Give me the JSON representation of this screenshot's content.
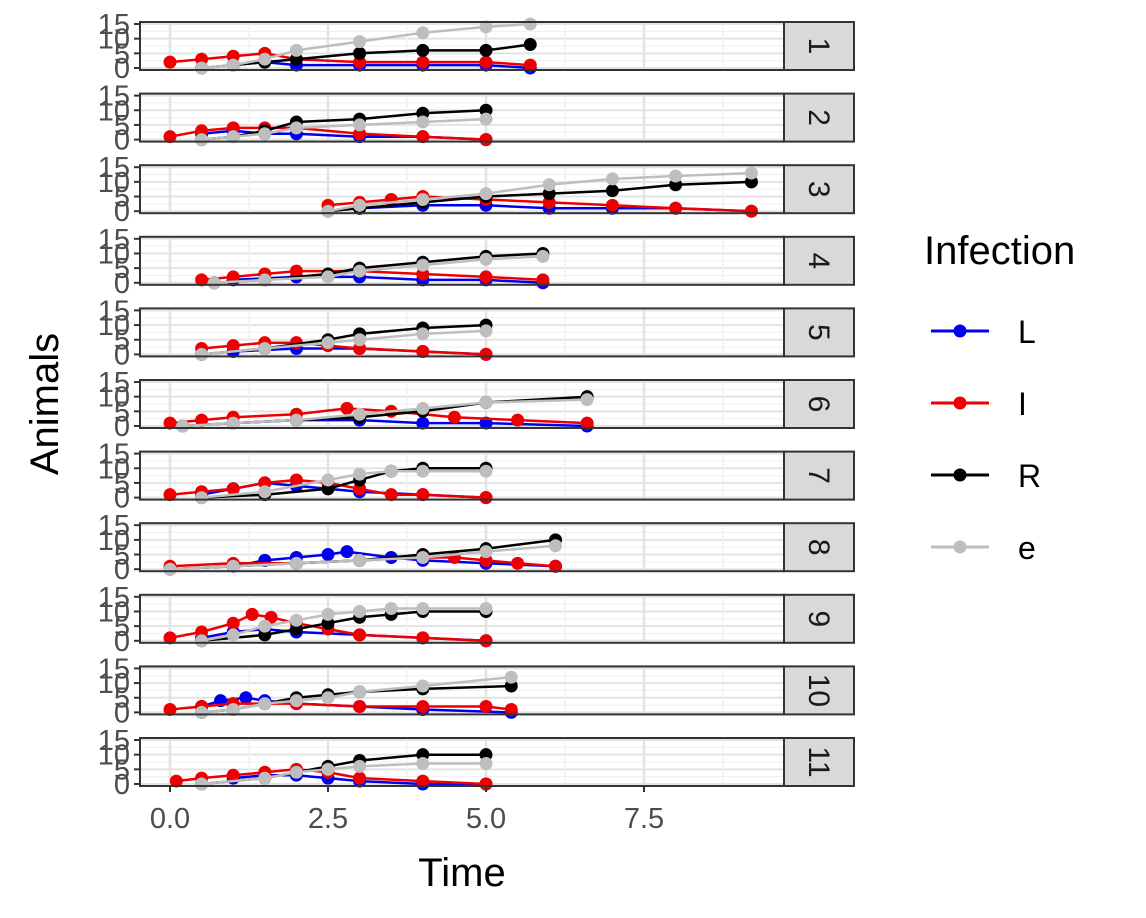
{
  "chart_data": {
    "type": "line",
    "xlabel": "Time",
    "ylabel": "Animals",
    "xlim": [
      0,
      9.6
    ],
    "ylim": [
      0,
      15
    ],
    "x_ticks": [
      "0.0",
      "2.5",
      "5.0",
      "7.5"
    ],
    "y_ticks": [
      "0",
      "5",
      "10",
      "15"
    ],
    "grid": true,
    "legend": {
      "title": "Infection",
      "position": "right",
      "entries": [
        {
          "label": "L",
          "color": "#0000ee"
        },
        {
          "label": "I",
          "color": "#ee0000"
        },
        {
          "label": "R",
          "color": "#000000"
        },
        {
          "label": "e",
          "color": "#bebebe"
        }
      ]
    },
    "panels": [
      {
        "label": "1",
        "series": [
          {
            "name": "L",
            "x": [
              1.0,
              1.5,
              2.0,
              3.0,
              4.0,
              5.0,
              5.7
            ],
            "y": [
              1,
              2,
              1,
              1,
              1,
              1,
              0
            ]
          },
          {
            "name": "I",
            "x": [
              0.0,
              0.5,
              1.0,
              1.5,
              2.0,
              3.0,
              4.0,
              5.0,
              5.7
            ],
            "y": [
              2,
              3,
              4,
              5,
              3,
              2,
              2,
              2,
              1
            ]
          },
          {
            "name": "R",
            "x": [
              0.5,
              1.0,
              1.5,
              2.0,
              3.0,
              4.0,
              5.0,
              5.7
            ],
            "y": [
              0,
              1,
              2,
              3,
              5,
              6,
              6,
              8
            ]
          },
          {
            "name": "e",
            "x": [
              0.5,
              1.0,
              1.5,
              2.0,
              3.0,
              4.0,
              5.0,
              5.7
            ],
            "y": [
              0,
              1,
              3,
              6,
              9,
              12,
              14,
              15
            ]
          }
        ]
      },
      {
        "label": "2",
        "series": [
          {
            "name": "L",
            "x": [
              0.5,
              1.0,
              1.5,
              2.0,
              3.0,
              4.0,
              5.0
            ],
            "y": [
              2,
              3,
              2,
              2,
              1,
              1,
              0
            ]
          },
          {
            "name": "I",
            "x": [
              0.0,
              0.5,
              1.0,
              1.5,
              2.0,
              3.0,
              4.0,
              5.0
            ],
            "y": [
              1,
              3,
              4,
              4,
              4,
              2,
              1,
              0
            ]
          },
          {
            "name": "R",
            "x": [
              0.5,
              1.0,
              1.5,
              2.0,
              3.0,
              4.0,
              5.0
            ],
            "y": [
              0,
              1,
              3,
              6,
              7,
              9,
              10
            ]
          },
          {
            "name": "e",
            "x": [
              0.5,
              1.0,
              1.5,
              2.0,
              3.0,
              4.0,
              5.0
            ],
            "y": [
              0,
              1,
              2,
              4,
              5,
              6,
              7
            ]
          }
        ]
      },
      {
        "label": "3",
        "series": [
          {
            "name": "L",
            "x": [
              3.0,
              4.0,
              5.0,
              6.0,
              7.0,
              8.0,
              9.2
            ],
            "y": [
              1,
              2,
              2,
              1,
              1,
              1,
              0
            ]
          },
          {
            "name": "I",
            "x": [
              2.5,
              3.0,
              3.5,
              4.0,
              5.0,
              6.0,
              7.0,
              8.0,
              9.2
            ],
            "y": [
              2,
              3,
              4,
              5,
              4,
              3,
              2,
              1,
              0
            ]
          },
          {
            "name": "R",
            "x": [
              2.5,
              3.0,
              4.0,
              5.0,
              6.0,
              7.0,
              8.0,
              9.2
            ],
            "y": [
              0,
              1,
              3,
              5,
              6,
              7,
              9,
              10
            ]
          },
          {
            "name": "e",
            "x": [
              2.5,
              3.0,
              4.0,
              5.0,
              6.0,
              7.0,
              8.0,
              9.2
            ],
            "y": [
              0,
              2,
              4,
              6,
              9,
              11,
              12,
              13
            ]
          }
        ]
      },
      {
        "label": "4",
        "series": [
          {
            "name": "L",
            "x": [
              1.0,
              2.0,
              3.0,
              4.0,
              5.0,
              5.9
            ],
            "y": [
              1,
              2,
              2,
              1,
              1,
              0
            ]
          },
          {
            "name": "I",
            "x": [
              0.5,
              1.0,
              1.5,
              2.0,
              3.0,
              4.0,
              5.0,
              5.9
            ],
            "y": [
              1,
              2,
              3,
              4,
              4,
              3,
              2,
              1
            ]
          },
          {
            "name": "R",
            "x": [
              0.7,
              1.5,
              2.5,
              3.0,
              4.0,
              5.0,
              5.9
            ],
            "y": [
              0,
              1,
              3,
              5,
              7,
              9,
              10
            ]
          },
          {
            "name": "e",
            "x": [
              0.7,
              1.5,
              2.5,
              3.0,
              4.0,
              5.0,
              5.9
            ],
            "y": [
              0,
              1,
              2,
              4,
              6,
              8,
              9
            ]
          }
        ]
      },
      {
        "label": "5",
        "series": [
          {
            "name": "L",
            "x": [
              1.0,
              2.0,
              3.0,
              4.0,
              5.0
            ],
            "y": [
              1,
              2,
              2,
              1,
              0
            ]
          },
          {
            "name": "I",
            "x": [
              0.5,
              1.0,
              1.5,
              2.0,
              2.5,
              3.0,
              4.0,
              5.0
            ],
            "y": [
              2,
              3,
              4,
              4,
              3,
              2,
              1,
              0
            ]
          },
          {
            "name": "R",
            "x": [
              0.5,
              1.5,
              2.5,
              3.0,
              4.0,
              5.0
            ],
            "y": [
              0,
              2,
              5,
              7,
              9,
              10
            ]
          },
          {
            "name": "e",
            "x": [
              0.5,
              1.5,
              2.5,
              3.0,
              4.0,
              5.0
            ],
            "y": [
              0,
              2,
              4,
              5,
              7,
              8
            ]
          }
        ]
      },
      {
        "label": "6",
        "series": [
          {
            "name": "L",
            "x": [
              1.0,
              2.0,
              3.0,
              4.0,
              5.0,
              6.6
            ],
            "y": [
              1,
              2,
              2,
              1,
              1,
              0
            ]
          },
          {
            "name": "I",
            "x": [
              0.0,
              0.5,
              1.0,
              2.0,
              2.8,
              3.5,
              4.5,
              5.5,
              6.6
            ],
            "y": [
              1,
              2,
              3,
              4,
              6,
              5,
              3,
              2,
              1
            ]
          },
          {
            "name": "R",
            "x": [
              0.2,
              1.0,
              2.0,
              3.0,
              4.0,
              5.0,
              6.6
            ],
            "y": [
              0,
              1,
              2,
              3,
              5,
              8,
              10
            ]
          },
          {
            "name": "e",
            "x": [
              0.2,
              1.0,
              2.0,
              3.0,
              4.0,
              5.0,
              6.6
            ],
            "y": [
              0,
              1,
              2,
              4,
              6,
              8,
              9
            ]
          }
        ]
      },
      {
        "label": "7",
        "series": [
          {
            "name": "L",
            "x": [
              0.5,
              1.0,
              1.5,
              2.0,
              2.5,
              3.0,
              4.0,
              5.0
            ],
            "y": [
              1,
              3,
              5,
              4,
              3,
              2,
              1,
              0
            ]
          },
          {
            "name": "I",
            "x": [
              0.0,
              0.5,
              1.0,
              1.5,
              2.0,
              2.5,
              3.0,
              3.5,
              4.0,
              5.0
            ],
            "y": [
              1,
              2,
              3,
              5,
              6,
              5,
              3,
              1,
              1,
              0
            ]
          },
          {
            "name": "R",
            "x": [
              0.5,
              1.5,
              2.5,
              3.0,
              3.5,
              4.0,
              5.0
            ],
            "y": [
              0,
              1,
              3,
              6,
              9,
              10,
              10
            ]
          },
          {
            "name": "e",
            "x": [
              0.5,
              1.5,
              2.5,
              3.0,
              3.5,
              4.0,
              5.0
            ],
            "y": [
              0,
              2,
              6,
              8,
              9,
              9,
              9
            ]
          }
        ]
      },
      {
        "label": "8",
        "series": [
          {
            "name": "L",
            "x": [
              1.0,
              1.5,
              2.0,
              2.5,
              2.8,
              3.5,
              4.0,
              5.0,
              6.1
            ],
            "y": [
              1,
              3,
              4,
              5,
              6,
              4,
              3,
              2,
              1
            ]
          },
          {
            "name": "I",
            "x": [
              0.0,
              1.0,
              2.0,
              3.0,
              4.0,
              4.5,
              5.0,
              5.5,
              6.1
            ],
            "y": [
              1,
              2,
              2,
              3,
              4,
              4,
              3,
              2,
              1
            ]
          },
          {
            "name": "R",
            "x": [
              0.0,
              1.0,
              2.0,
              3.0,
              4.0,
              5.0,
              6.1
            ],
            "y": [
              0,
              1,
              2,
              3,
              5,
              7,
              10
            ]
          },
          {
            "name": "e",
            "x": [
              0.0,
              1.0,
              2.0,
              3.0,
              4.0,
              5.0,
              6.1
            ],
            "y": [
              0,
              1,
              2,
              3,
              4,
              6,
              8
            ]
          }
        ]
      },
      {
        "label": "9",
        "series": [
          {
            "name": "L",
            "x": [
              0.5,
              1.0,
              1.5,
              2.0,
              3.0,
              4.0,
              5.0
            ],
            "y": [
              1,
              3,
              4,
              3,
              2,
              1,
              0
            ]
          },
          {
            "name": "I",
            "x": [
              0.0,
              0.5,
              1.0,
              1.3,
              1.6,
              2.0,
              2.5,
              3.0,
              4.0,
              5.0
            ],
            "y": [
              1,
              3,
              6,
              9,
              8,
              6,
              4,
              2,
              1,
              0
            ]
          },
          {
            "name": "R",
            "x": [
              0.5,
              1.5,
              2.0,
              2.5,
              3.0,
              3.5,
              4.0,
              5.0
            ],
            "y": [
              0,
              2,
              4,
              6,
              8,
              9,
              10,
              10
            ]
          },
          {
            "name": "e",
            "x": [
              0.5,
              1.0,
              1.5,
              2.0,
              2.5,
              3.0,
              3.5,
              4.0,
              5.0
            ],
            "y": [
              0,
              2,
              5,
              7,
              9,
              10,
              11,
              11,
              11
            ]
          }
        ]
      },
      {
        "label": "10",
        "series": [
          {
            "name": "L",
            "x": [
              0.5,
              0.8,
              1.2,
              1.5,
              2.0,
              3.0,
              4.0,
              5.4
            ],
            "y": [
              2,
              4,
              5,
              4,
              3,
              2,
              1,
              0
            ]
          },
          {
            "name": "I",
            "x": [
              0.0,
              0.5,
              1.0,
              1.5,
              2.0,
              3.0,
              4.0,
              5.0,
              5.4
            ],
            "y": [
              1,
              2,
              3,
              3,
              3,
              2,
              2,
              2,
              1
            ]
          },
          {
            "name": "R",
            "x": [
              0.5,
              1.0,
              1.5,
              2.0,
              2.5,
              3.0,
              4.0,
              5.4
            ],
            "y": [
              0,
              1,
              3,
              5,
              6,
              7,
              8,
              9
            ]
          },
          {
            "name": "e",
            "x": [
              0.5,
              1.0,
              1.5,
              2.0,
              2.5,
              3.0,
              4.0,
              5.4
            ],
            "y": [
              0,
              1,
              3,
              4,
              5,
              7,
              9,
              12
            ]
          }
        ]
      },
      {
        "label": "11",
        "series": [
          {
            "name": "L",
            "x": [
              1.0,
              1.5,
              2.0,
              2.5,
              3.0,
              4.0,
              5.0
            ],
            "y": [
              2,
              3,
              3,
              2,
              1,
              0,
              0
            ]
          },
          {
            "name": "I",
            "x": [
              0.1,
              0.5,
              1.0,
              1.5,
              2.0,
              2.5,
              3.0,
              4.0,
              5.0
            ],
            "y": [
              1,
              2,
              3,
              4,
              5,
              4,
              2,
              1,
              0
            ]
          },
          {
            "name": "R",
            "x": [
              0.5,
              1.5,
              2.0,
              2.5,
              3.0,
              4.0,
              5.0
            ],
            "y": [
              0,
              2,
              4,
              6,
              8,
              10,
              10
            ]
          },
          {
            "name": "e",
            "x": [
              0.5,
              1.5,
              2.0,
              2.5,
              3.0,
              4.0,
              5.0
            ],
            "y": [
              0,
              2,
              4,
              5,
              6,
              7,
              7
            ]
          }
        ]
      }
    ]
  }
}
